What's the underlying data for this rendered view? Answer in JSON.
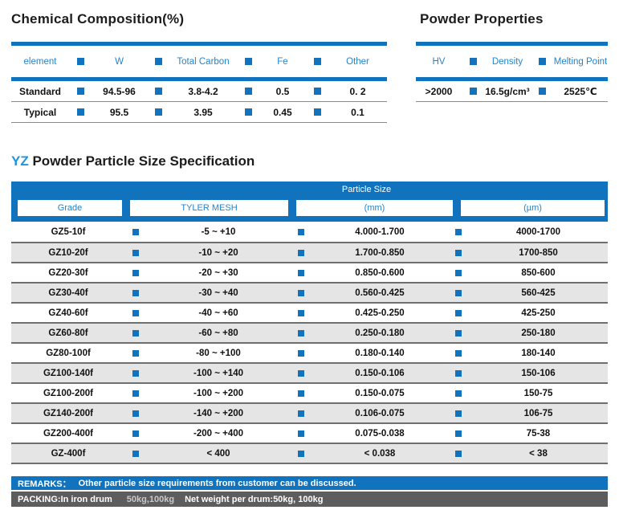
{
  "colors": {
    "accent_blue": "#1173bd",
    "header_text_blue": "#2384cb",
    "yz_blue": "#2095dd",
    "stripe_gray": "#e5e5e5",
    "packing_bar_gray": "#5d5d5d"
  },
  "chemical_composition": {
    "title": "Chemical Composition(%)",
    "headers": [
      "element",
      "W",
      "Total Carbon",
      "Fe",
      "Other"
    ],
    "rows": [
      {
        "label": "Standard",
        "values": [
          "94.5-96",
          "3.8-4.2",
          "0.5",
          "0. 2"
        ]
      },
      {
        "label": "Typical",
        "values": [
          "95.5",
          "3.95",
          "0.45",
          "0.1"
        ]
      }
    ]
  },
  "powder_properties": {
    "title": "Powder Properties",
    "headers": [
      "HV",
      "Density",
      "Melting Point"
    ],
    "values": [
      ">2000",
      "16.5g/cm³",
      "2525℃"
    ]
  },
  "spec_section": {
    "title_prefix": "YZ",
    "title_rest": "Powder Particle Size Specification",
    "band_header": "Particle Size",
    "columns": [
      "Grade",
      "TYLER MESH",
      "(mm)",
      "(µm)"
    ],
    "rows": [
      {
        "grade": "GZ5-10f",
        "mesh": "-5 ~ +10",
        "mm": "4.000-1.700",
        "um": "4000-1700"
      },
      {
        "grade": "GZ10-20f",
        "mesh": "-10 ~ +20",
        "mm": "1.700-0.850",
        "um": "1700-850"
      },
      {
        "grade": "GZ20-30f",
        "mesh": "-20 ~ +30",
        "mm": "0.850-0.600",
        "um": "850-600"
      },
      {
        "grade": "GZ30-40f",
        "mesh": "-30 ~ +40",
        "mm": "0.560-0.425",
        "um": "560-425"
      },
      {
        "grade": "GZ40-60f",
        "mesh": "-40 ~ +60",
        "mm": "0.425-0.250",
        "um": "425-250"
      },
      {
        "grade": "GZ60-80f",
        "mesh": "-60 ~ +80",
        "mm": "0.250-0.180",
        "um": "250-180"
      },
      {
        "grade": "GZ80-100f",
        "mesh": "-80 ~ +100",
        "mm": "0.180-0.140",
        "um": "180-140"
      },
      {
        "grade": "GZ100-140f",
        "mesh": "-100 ~ +140",
        "mm": "0.150-0.106",
        "um": "150-106"
      },
      {
        "grade": "GZ100-200f",
        "mesh": "-100 ~ +200",
        "mm": "0.150-0.075",
        "um": "150-75"
      },
      {
        "grade": "GZ140-200f",
        "mesh": "-140 ~ +200",
        "mm": "0.106-0.075",
        "um": "106-75"
      },
      {
        "grade": "GZ200-400f",
        "mesh": "-200 ~ +400",
        "mm": "0.075-0.038",
        "um": "75-38"
      },
      {
        "grade": "GZ-400f",
        "mesh": "< 400",
        "mm": "< 0.038",
        "um": "< 38"
      }
    ]
  },
  "remarks": {
    "label": "REMARKS：",
    "text": "Other particle size requirements from customer can be discussed."
  },
  "packing": {
    "label": "PACKING:In iron drum",
    "quantities": "50kg,100kg",
    "net_weight": "Net weight per drum:50kg, 100kg"
  }
}
